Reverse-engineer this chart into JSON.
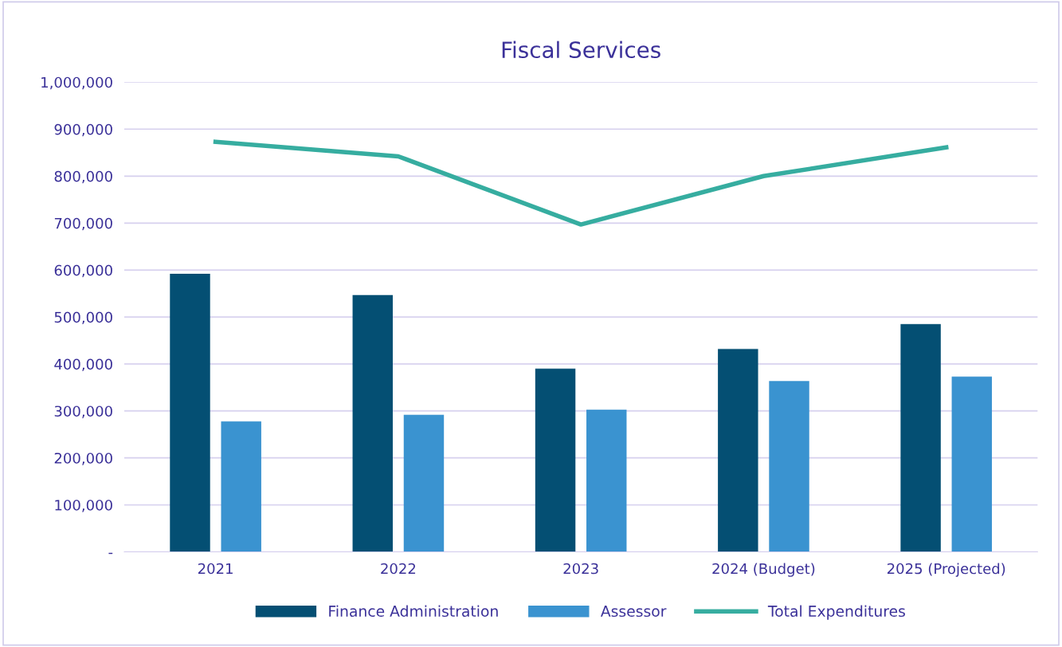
{
  "chart_data": {
    "type": "bar",
    "title": "Fiscal Services",
    "categories": [
      "2021",
      "2022",
      "2023",
      "2024 (Budget)",
      "2025 (Projected)"
    ],
    "series": [
      {
        "name": "Finance Administration",
        "color": "#044f73",
        "values": [
          592000,
          547000,
          390000,
          432000,
          485000
        ]
      },
      {
        "name": "Assessor",
        "color": "#3a93d0",
        "values": [
          278000,
          292000,
          303000,
          364000,
          373000
        ]
      },
      {
        "name": "Total Expenditures",
        "type": "line",
        "color": "#36ada0",
        "values": [
          873000,
          842000,
          697000,
          800000,
          861000
        ]
      }
    ],
    "ylim": [
      0,
      1000000
    ],
    "yticks": [
      {
        "value": 0,
        "label": "-"
      },
      {
        "value": 100000,
        "label": "100,000"
      },
      {
        "value": 200000,
        "label": "200,000"
      },
      {
        "value": 300000,
        "label": "300,000"
      },
      {
        "value": 400000,
        "label": "400,000"
      },
      {
        "value": 500000,
        "label": "500,000"
      },
      {
        "value": 600000,
        "label": "600,000"
      },
      {
        "value": 700000,
        "label": "700,000"
      },
      {
        "value": 800000,
        "label": "800,000"
      },
      {
        "value": 900000,
        "label": "900,000"
      },
      {
        "value": 1000000,
        "label": "1,000,000"
      }
    ],
    "grid": "y",
    "legend": "bottom",
    "line_style": "solid",
    "marker": "none"
  }
}
